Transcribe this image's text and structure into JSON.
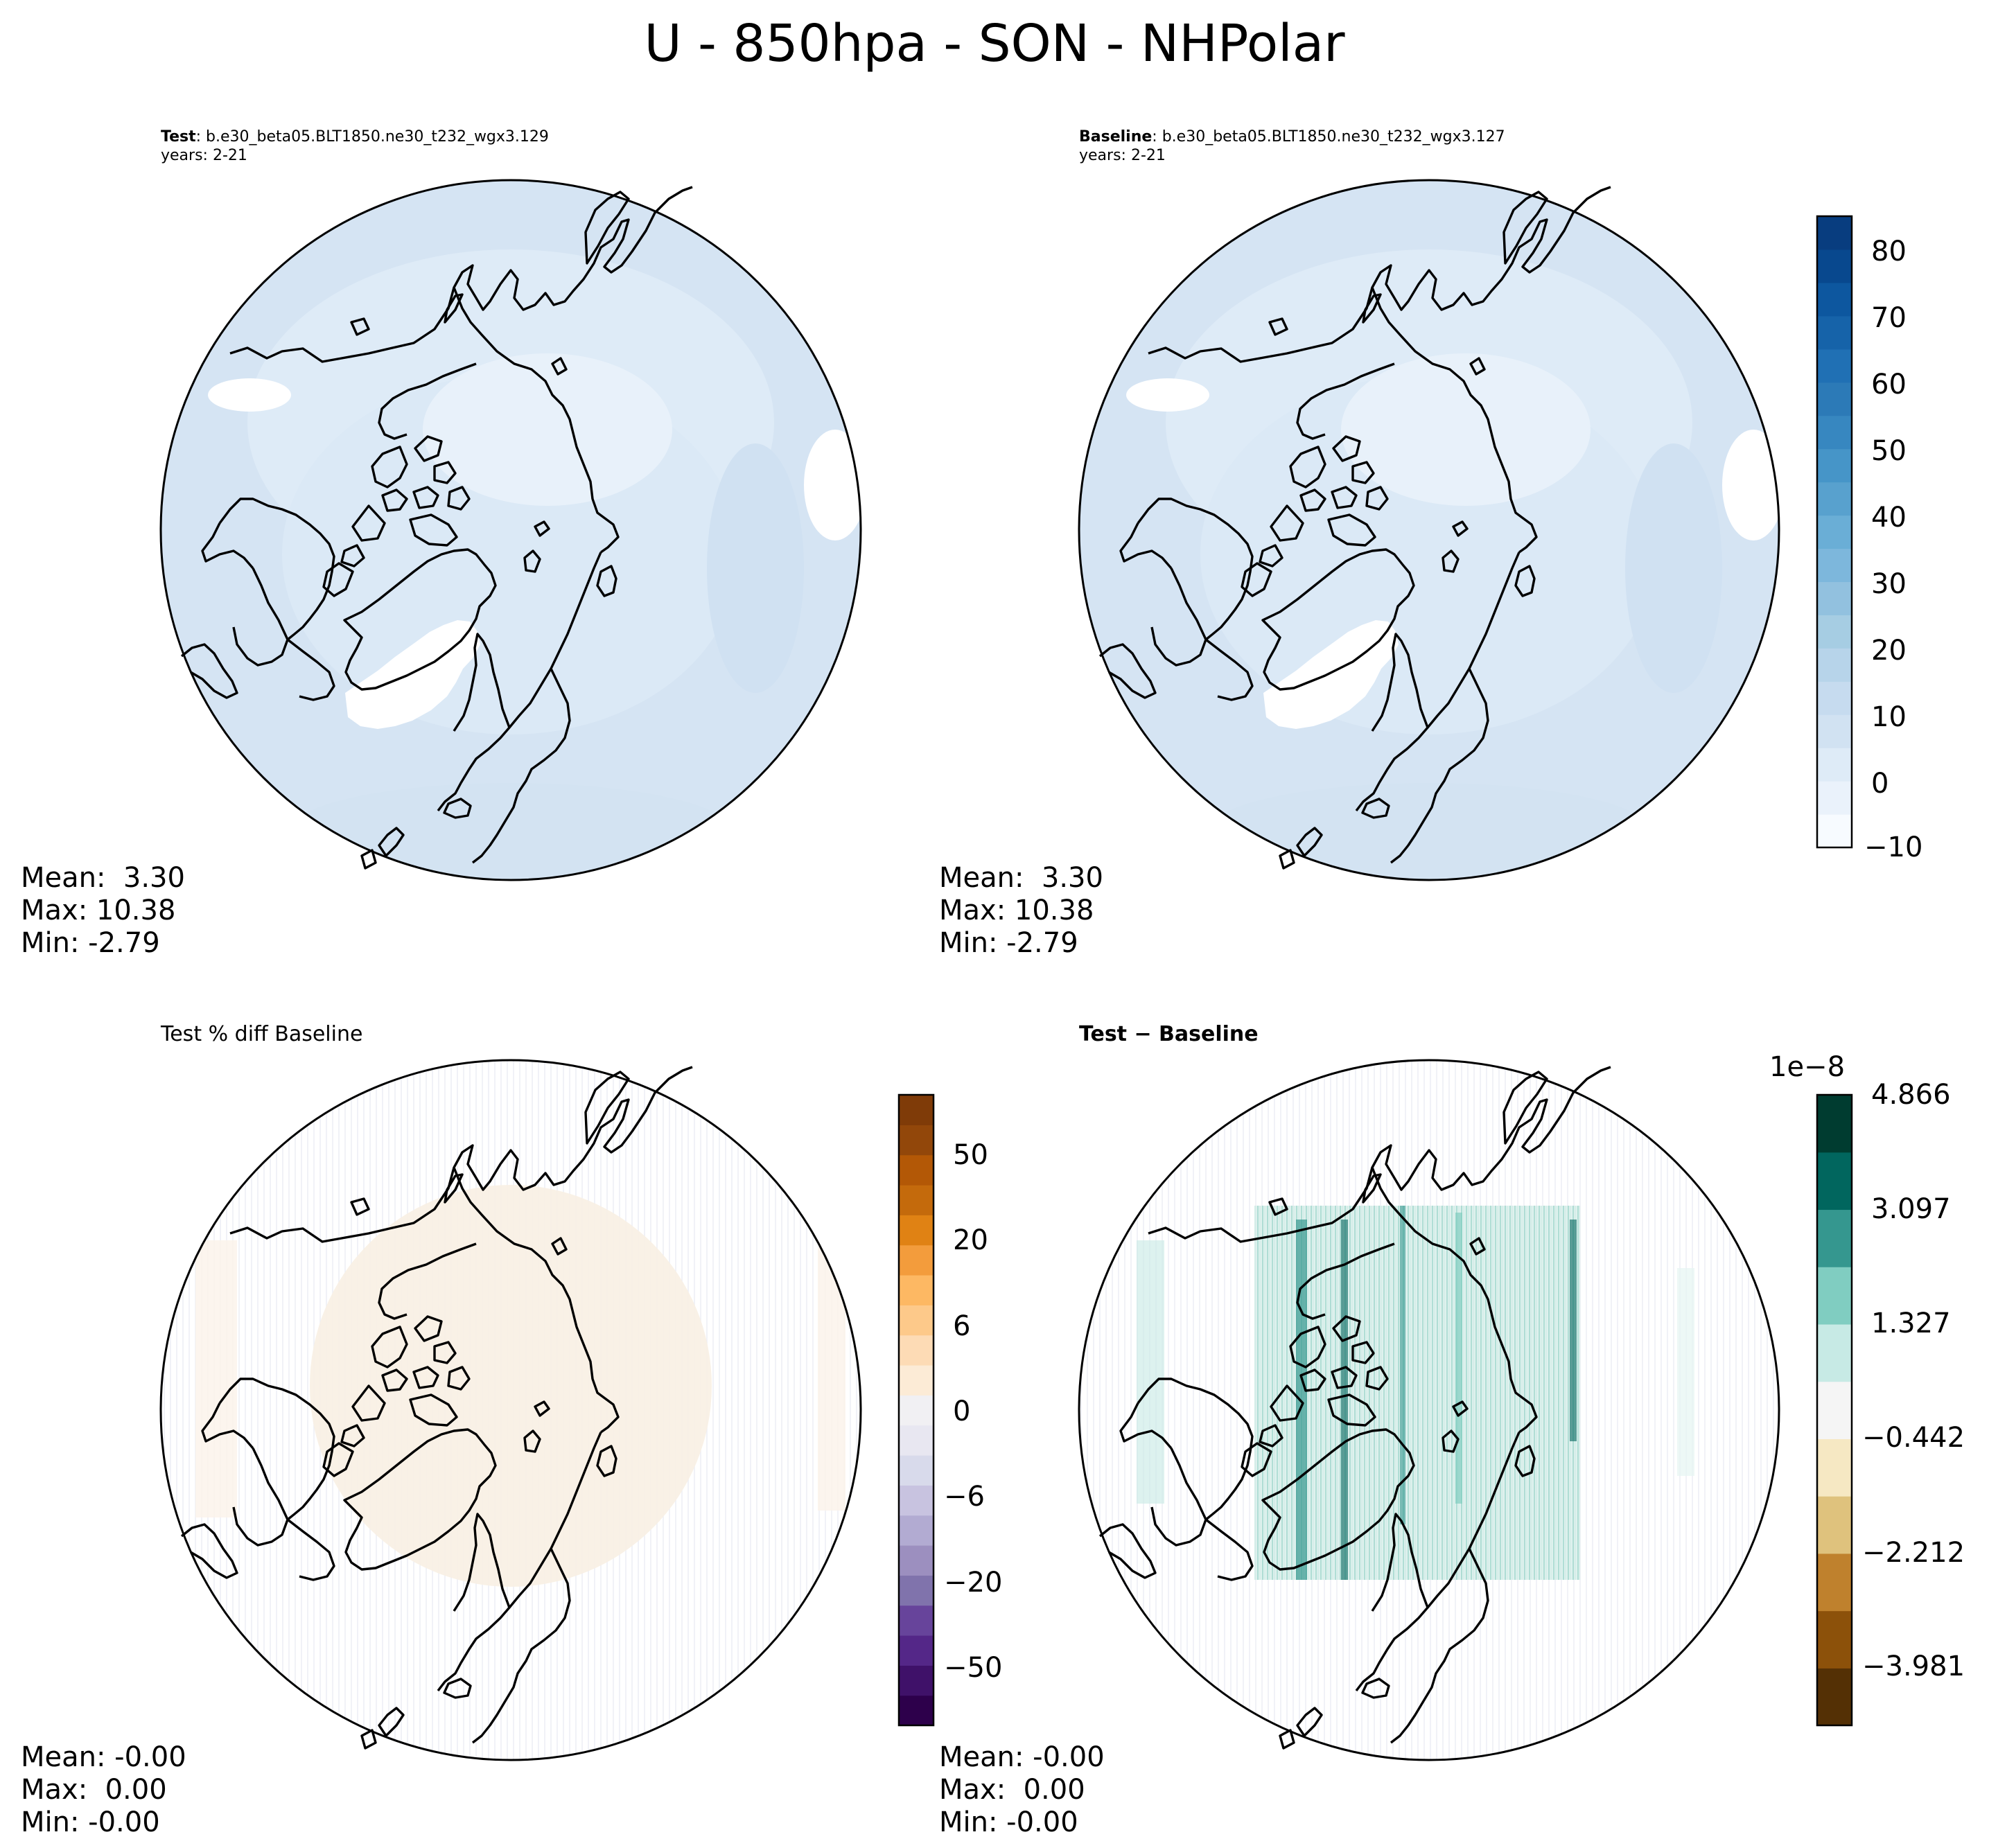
{
  "figure": {
    "title": "U - 850hpa - SON - NHPolar"
  },
  "panels": {
    "test": {
      "title_bold": "Test",
      "title_rest": ": b.e30_beta05.BLT1850.ne30_t232_wgx3.129",
      "years": "years: 2-21",
      "stats": {
        "mean": "Mean:  3.30",
        "max": "Max: 10.38",
        "min": "Min: -2.79"
      }
    },
    "baseline": {
      "title_bold": "Baseline",
      "title_rest": ": b.e30_beta05.BLT1850.ne30_t232_wgx3.127",
      "years": "years: 2-21",
      "stats": {
        "mean": "Mean:  3.30",
        "max": "Max: 10.38",
        "min": "Min: -2.79"
      }
    },
    "pctdiff": {
      "title": "Test % diff Baseline",
      "stats": {
        "mean": "Mean: -0.00",
        "max": "Max:  0.00",
        "min": "Min: -0.00"
      }
    },
    "diff": {
      "title": "Test − Baseline",
      "stats": {
        "mean": "Mean: -0.00",
        "max": "Max:  0.00",
        "min": "Min: -0.00"
      }
    }
  },
  "colorbars": {
    "wind": {
      "colormap": "Blues",
      "levels": [
        -10,
        -5,
        0,
        5,
        10,
        15,
        20,
        25,
        30,
        35,
        40,
        45,
        50,
        55,
        60,
        65,
        70,
        75,
        80,
        85
      ],
      "ticks": [
        "80",
        "70",
        "60",
        "50",
        "40",
        "30",
        "20",
        "10",
        "0",
        "−10"
      ],
      "colors": [
        "#f7fbff",
        "#eaf2fb",
        "#deebf7",
        "#d1e2f2",
        "#c6dbef",
        "#b7d4ea",
        "#a6cde3",
        "#92c1df",
        "#7db7dc",
        "#6aaed6",
        "#58a1ce",
        "#4695c8",
        "#3787c0",
        "#2c7ab7",
        "#2070b4",
        "#1663a9",
        "#0d579f",
        "#08488e",
        "#083d7f"
      ]
    },
    "pct": {
      "colormap": "PuOr_r",
      "ticks": [
        "50",
        "20",
        "6",
        "0",
        "−6",
        "−20",
        "−50"
      ],
      "colors": [
        "#2d004b",
        "#3f1169",
        "#542788",
        "#67449b",
        "#8073ac",
        "#9c8fbf",
        "#b2abd2",
        "#c8c3e0",
        "#d8daeb",
        "#e8e7f1",
        "#f1f0f3",
        "#fcebd6",
        "#fddbb5",
        "#fdc98a",
        "#fdb863",
        "#f39c3c",
        "#e08214",
        "#c46a0c",
        "#b35806",
        "#92470a",
        "#7f3b08"
      ]
    },
    "diff": {
      "colormap": "BrBG",
      "exponent": "1e−8",
      "ticks": [
        "4.866",
        "3.097",
        "1.327",
        "−0.442",
        "−2.212",
        "−3.981"
      ],
      "colors": [
        "#543005",
        "#8c510a",
        "#bf812d",
        "#dfc27d",
        "#f6e8c3",
        "#f5f5f5",
        "#c7eae5",
        "#80cdc1",
        "#35978f",
        "#01665e",
        "#003c30"
      ]
    }
  },
  "map": {
    "projection": "North Polar Stereographic",
    "region": "NHPolar"
  }
}
